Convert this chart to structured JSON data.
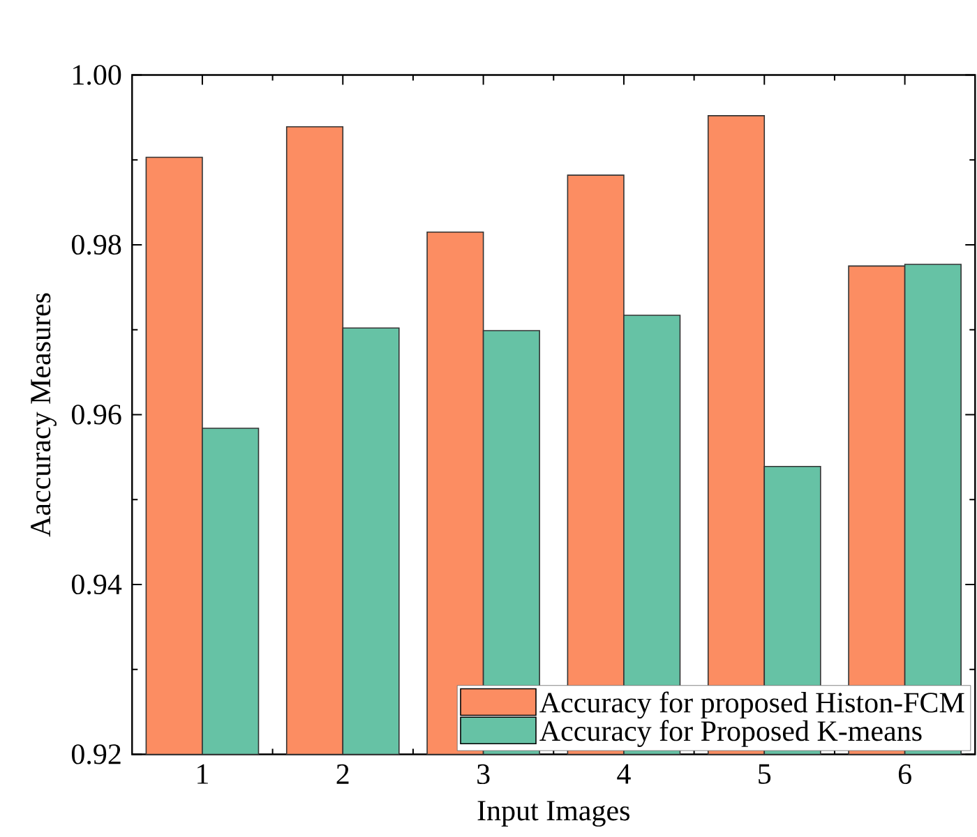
{
  "chart_data": {
    "type": "bar",
    "xlabel": "Input Images",
    "ylabel": "Aaccuracy Measures",
    "categories": [
      "1",
      "2",
      "3",
      "4",
      "5",
      "6"
    ],
    "series": [
      {
        "name": "Accuracy for proposed Histon-FCM",
        "color": "#fc8d62",
        "values": [
          0.9903,
          0.9939,
          0.9815,
          0.9882,
          0.9952,
          0.9775
        ]
      },
      {
        "name": "Accuracy for Proposed K-means",
        "color": "#66c2a5",
        "values": [
          0.9584,
          0.9702,
          0.9699,
          0.9717,
          0.9539,
          0.9777
        ]
      }
    ],
    "ylim": [
      0.92,
      1.0
    ],
    "yticks": [
      0.92,
      0.94,
      0.96,
      0.98,
      {
        "value": 1.0,
        "label": "1.00"
      }
    ],
    "grid": false,
    "legend": "bottom right"
  }
}
